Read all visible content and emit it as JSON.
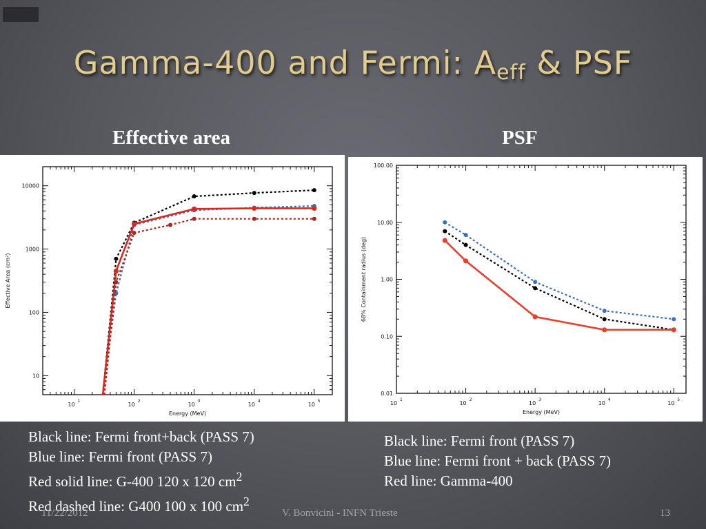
{
  "slide": {
    "title_main": "Gamma-400 and Fermi: A",
    "title_sub": "eff",
    "title_tail": " & PSF",
    "left_heading": "Effective area",
    "right_heading": "PSF",
    "left_legend": {
      "l1": "Black line: Fermi front+back (PASS 7)",
      "l2": "Blue line: Fermi front (PASS 7)",
      "l3": "Red solid line: G-400 120 x 120 cm",
      "l3_sup": "2",
      "l4": "Red dashed line: G400 100 x 100 cm",
      "l4_sup": "2"
    },
    "right_legend": {
      "l1": "Black line: Fermi front (PASS 7)",
      "l2": "Blue line: Fermi front + back (PASS 7)",
      "l3": "Red line: Gamma-400"
    },
    "footer": {
      "date": "11/22/2012",
      "author": "V. Bonvicini - INFN Trieste",
      "page": "13"
    }
  },
  "chart_data": [
    {
      "type": "line",
      "xlabel": "Energy (MeV)",
      "ylabel": "Effective Area (cm²)",
      "xscale": "log",
      "yscale": "log",
      "xlim": [
        3,
        200000
      ],
      "ylim": [
        5,
        20000
      ],
      "xticks": [
        {
          "v": 10,
          "e": "1"
        },
        {
          "v": 100,
          "e": "2"
        },
        {
          "v": 1000,
          "e": "3"
        },
        {
          "v": 10000,
          "e": "4"
        },
        {
          "v": 100000,
          "e": "5"
        }
      ],
      "yticks": [
        {
          "v": 10,
          "t": "10"
        },
        {
          "v": 100,
          "t": "100"
        },
        {
          "v": 1000,
          "t": "1000"
        },
        {
          "v": 10000,
          "t": "10000"
        }
      ],
      "series": [
        {
          "color": "#000000",
          "dash": true,
          "width": 2.2,
          "markers": true,
          "x": [
            30,
            50,
            100,
            1000,
            10000,
            100000
          ],
          "y": [
            5,
            700,
            2600,
            6800,
            7700,
            8500
          ]
        },
        {
          "color": "#3a6fc0",
          "dash": true,
          "width": 2.2,
          "markers": true,
          "x": [
            30,
            50,
            100,
            1000,
            10000,
            100000
          ],
          "y": [
            5,
            200,
            2400,
            4100,
            4500,
            4800
          ]
        },
        {
          "color": "#d9281e",
          "dash": false,
          "width": 2.6,
          "markers": true,
          "x": [
            30,
            50,
            100,
            1000,
            10000,
            100000
          ],
          "y": [
            5,
            450,
            2500,
            4300,
            4400,
            4400
          ]
        },
        {
          "color": "#b02318",
          "dash": true,
          "width": 2.2,
          "markers": true,
          "x": [
            32,
            50,
            100,
            400,
            1000,
            10000,
            100000
          ],
          "y": [
            5,
            300,
            1800,
            2400,
            3000,
            3000,
            3000
          ]
        }
      ]
    },
    {
      "type": "line",
      "xlabel": "Energy (MeV)",
      "ylabel": "68% Containment radius (deg)",
      "xscale": "log",
      "yscale": "log",
      "xlim": [
        10,
        150000
      ],
      "ylim": [
        0.01,
        100
      ],
      "xticks": [
        {
          "v": 10,
          "e": "1"
        },
        {
          "v": 100,
          "e": "2"
        },
        {
          "v": 1000,
          "e": "3"
        },
        {
          "v": 10000,
          "e": "4"
        },
        {
          "v": 100000,
          "e": "5"
        }
      ],
      "yticks": [
        {
          "v": 0.01,
          "t": "0.01"
        },
        {
          "v": 0.1,
          "t": "0.10"
        },
        {
          "v": 1,
          "t": "1.00"
        },
        {
          "v": 10,
          "t": "10.00"
        },
        {
          "v": 100,
          "t": "100.00"
        }
      ],
      "series": [
        {
          "color": "#000000",
          "dash": true,
          "width": 2.2,
          "markers": true,
          "x": [
            50,
            100,
            1000,
            10000,
            100000
          ],
          "y": [
            7,
            4,
            0.7,
            0.2,
            0.13
          ]
        },
        {
          "color": "#3a6fc0",
          "dash": true,
          "width": 2.2,
          "markers": true,
          "x": [
            50,
            100,
            1000,
            10000,
            100000
          ],
          "y": [
            10,
            6,
            0.9,
            0.28,
            0.2
          ]
        },
        {
          "color": "#e8402c",
          "dash": false,
          "width": 2.6,
          "markers": true,
          "x": [
            50,
            100,
            1000,
            10000,
            100000
          ],
          "y": [
            4.8,
            2.1,
            0.22,
            0.13,
            0.13
          ]
        }
      ]
    }
  ]
}
